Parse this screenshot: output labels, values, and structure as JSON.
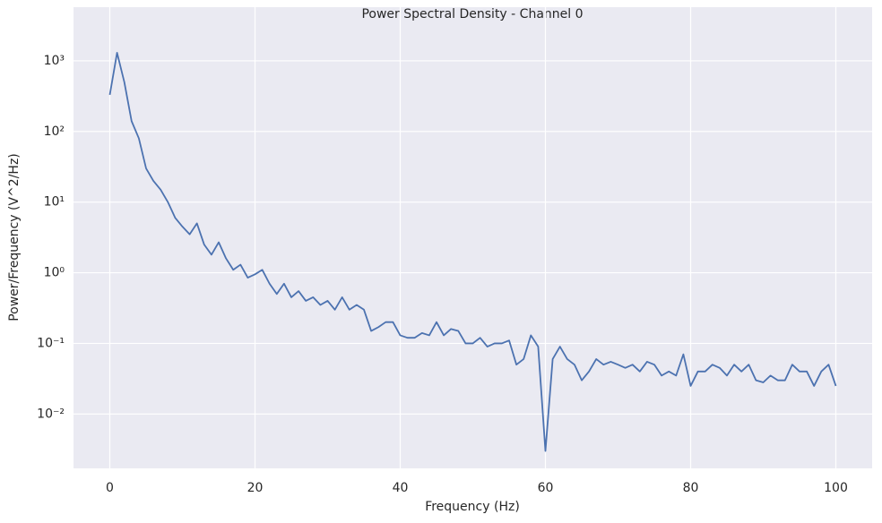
{
  "chart_data": {
    "type": "line",
    "title": "Power Spectral Density - Channel 0",
    "x_label": "Frequency (Hz)",
    "y_label": "Power/Frequency (V^2/Hz)",
    "y_scale": "log",
    "grid": true,
    "color": "#4c72b0",
    "xlim": [
      -5,
      105
    ],
    "ylim": [
      0.0017,
      5750
    ],
    "xticks": [
      0,
      20,
      40,
      60,
      80,
      100
    ],
    "yticks": [
      {
        "value": 0.01,
        "label": "10⁻²"
      },
      {
        "value": 0.1,
        "label": "10⁻¹"
      },
      {
        "value": 1,
        "label": "10⁰"
      },
      {
        "value": 10,
        "label": "10¹"
      },
      {
        "value": 100,
        "label": "10²"
      },
      {
        "value": 1000,
        "label": "10³"
      }
    ],
    "x": [
      0,
      1,
      2,
      3,
      4,
      5,
      6,
      7,
      8,
      9,
      10,
      11,
      12,
      13,
      14,
      15,
      16,
      17,
      18,
      19,
      20,
      21,
      22,
      23,
      24,
      25,
      26,
      27,
      28,
      29,
      30,
      31,
      32,
      33,
      34,
      35,
      36,
      37,
      38,
      39,
      40,
      41,
      42,
      43,
      44,
      45,
      46,
      47,
      48,
      49,
      50,
      51,
      52,
      53,
      54,
      55,
      56,
      57,
      58,
      59,
      60,
      61,
      62,
      63,
      64,
      65,
      66,
      67,
      68,
      69,
      70,
      71,
      72,
      73,
      74,
      75,
      76,
      77,
      78,
      79,
      80,
      81,
      82,
      83,
      84,
      85,
      86,
      87,
      88,
      89,
      90,
      91,
      92,
      93,
      94,
      95,
      96,
      97,
      98,
      99,
      100
    ],
    "values": [
      330,
      1300,
      500,
      140,
      80,
      30,
      20,
      15,
      10,
      6,
      4.5,
      3.5,
      5,
      2.5,
      1.8,
      2.7,
      1.6,
      1.1,
      1.3,
      0.85,
      0.95,
      1.1,
      0.7,
      0.5,
      0.7,
      0.45,
      0.55,
      0.4,
      0.45,
      0.35,
      0.4,
      0.3,
      0.45,
      0.3,
      0.35,
      0.3,
      0.15,
      0.17,
      0.2,
      0.2,
      0.13,
      0.12,
      0.12,
      0.14,
      0.13,
      0.2,
      0.13,
      0.16,
      0.15,
      0.1,
      0.1,
      0.12,
      0.09,
      0.1,
      0.1,
      0.11,
      0.05,
      0.06,
      0.13,
      0.09,
      0.003,
      0.06,
      0.09,
      0.06,
      0.05,
      0.03,
      0.04,
      0.06,
      0.05,
      0.055,
      0.05,
      0.045,
      0.05,
      0.04,
      0.055,
      0.05,
      0.035,
      0.04,
      0.035,
      0.07,
      0.025,
      0.04,
      0.04,
      0.05,
      0.045,
      0.035,
      0.05,
      0.04,
      0.05,
      0.03,
      0.028,
      0.035,
      0.03,
      0.03,
      0.05,
      0.04,
      0.04,
      0.025,
      0.04,
      0.05,
      0.025
    ]
  }
}
